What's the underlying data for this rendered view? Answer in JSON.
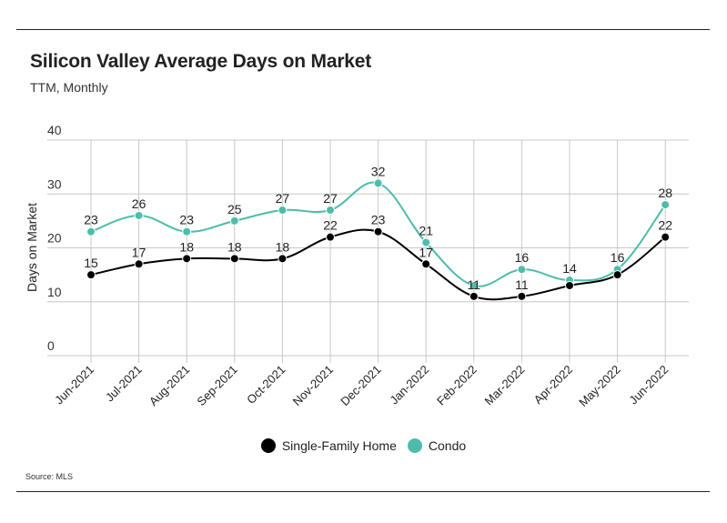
{
  "title": "Silicon Valley Average Days on Market",
  "subtitle": "TTM, Monthly",
  "source": "Source:  MLS",
  "chart_data": {
    "type": "line",
    "title": "Silicon Valley Average Days on Market",
    "subtitle": "TTM, Monthly",
    "ylabel": "Days on Market",
    "xlabel": "",
    "ylim": [
      0,
      40
    ],
    "yticks": [
      "0",
      "10",
      "20",
      "30",
      "40"
    ],
    "grid": true,
    "legend_position": "bottom",
    "categories": [
      "Jun-2021",
      "Jul-2021",
      "Aug-2021",
      "Sep-2021",
      "Oct-2021",
      "Nov-2021",
      "Dec-2021",
      "Jan-2022",
      "Feb-2022",
      "Mar-2022",
      "Apr-2022",
      "May-2022",
      "Jun-2022"
    ],
    "series": [
      {
        "name": "Single-Family Home",
        "color": "#000000",
        "values": [
          15,
          17,
          18,
          18,
          18,
          22,
          23,
          17,
          11,
          11,
          13,
          15,
          22
        ],
        "labels": [
          "15",
          "17",
          "18",
          "18",
          "18",
          "22",
          "23",
          "17",
          "11",
          "11",
          "",
          "",
          "22"
        ]
      },
      {
        "name": "Condo",
        "color": "#4dbdaa",
        "values": [
          23,
          26,
          23,
          25,
          27,
          27,
          32,
          21,
          13,
          16,
          14,
          16,
          28
        ],
        "labels": [
          "23",
          "26",
          "23",
          "25",
          "27",
          "27",
          "32",
          "21",
          "",
          "16",
          "14",
          "16",
          "28"
        ]
      }
    ]
  }
}
